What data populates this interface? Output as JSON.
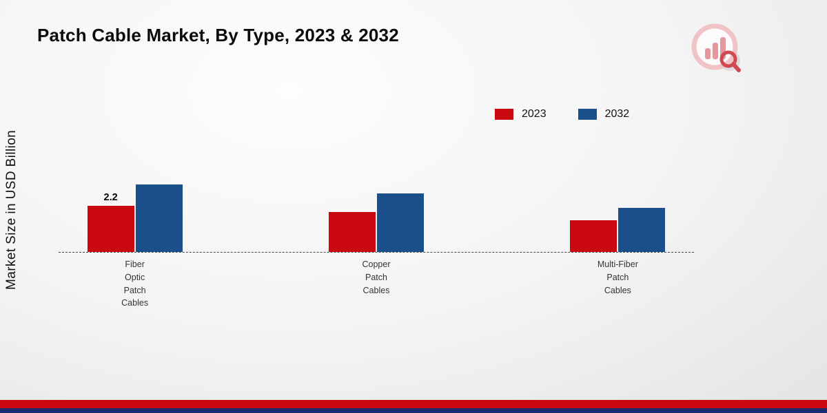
{
  "title": "Patch Cable Market, By Type, 2023 & 2032",
  "y_axis_label": "Market Size in USD Billion",
  "chart_data": {
    "type": "bar",
    "title": "Patch Cable Market, By Type, 2023 & 2032",
    "xlabel": "",
    "ylabel": "Market Size in USD Billion",
    "ylim": [
      0,
      3.6
    ],
    "grid": false,
    "legend_position": "top-right",
    "baseline_style": "dashed",
    "categories": [
      "Fiber\nOptic\nPatch\nCables",
      "Copper\nPatch\nCables",
      "Multi-Fiber\nPatch\nCables"
    ],
    "series": [
      {
        "name": "2023",
        "color": "#c9080f",
        "values": [
          2.2,
          1.9,
          1.5
        ],
        "labels": [
          "2.2",
          "",
          ""
        ]
      },
      {
        "name": "2032",
        "color": "#1a4f8b",
        "values": [
          3.2,
          2.8,
          2.1
        ],
        "labels": [
          "",
          "",
          ""
        ]
      }
    ]
  },
  "icons": {
    "logo": "bar-chart-magnifier-icon"
  },
  "footer": {
    "stripe_colors": [
      "#c9080f",
      "#1c2a6e"
    ]
  }
}
